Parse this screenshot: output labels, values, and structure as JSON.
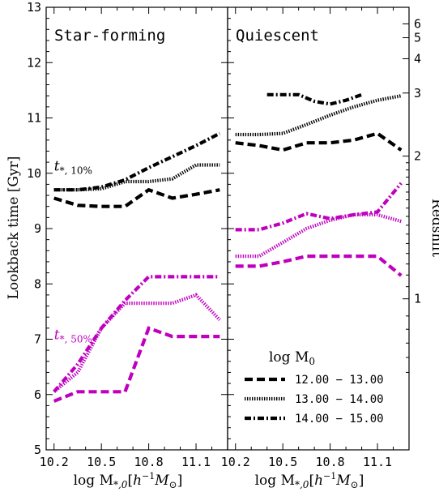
{
  "chart_data": {
    "type": "line",
    "ylabel": "Lookback time [Gyr]",
    "ylabel_right": "Redshift",
    "xlabel_left": "log M",
    "xlabel_right": "log M",
    "ylim": [
      5,
      13
    ],
    "xlim": [
      10.15,
      11.3
    ],
    "yticks": [
      "5",
      "6",
      "7",
      "8",
      "9",
      "10",
      "11",
      "12",
      "13"
    ],
    "yticks_values": [
      5,
      6,
      7,
      8,
      9,
      10,
      11,
      12,
      13
    ],
    "xticks": [
      "10.2",
      "10.5",
      "10.8",
      "11.1"
    ],
    "xticks_values": [
      10.2,
      10.5,
      10.8,
      11.1
    ],
    "redshift_ticks": [
      {
        "label": "1",
        "t": 7.73
      },
      {
        "label": "2",
        "t": 10.31
      },
      {
        "label": "3",
        "t": 11.45
      },
      {
        "label": "4",
        "t": 12.07
      },
      {
        "label": "5",
        "t": 12.45
      },
      {
        "label": "6",
        "t": 12.7
      }
    ],
    "redshift_minor_ticks": [
      6.4,
      6.67,
      6.93,
      7.18,
      7.42,
      7.95,
      8.16,
      8.36,
      8.55,
      8.73,
      8.9,
      9.06,
      9.22,
      9.37,
      9.52,
      9.66,
      9.8,
      9.93,
      10.06,
      10.19
    ],
    "legend": {
      "title": "log M",
      "entries": [
        "12.00 − 13.00",
        "13.00 − 14.00",
        "14.00 − 15.00"
      ]
    },
    "colors": {
      "t10": "#000000",
      "t50": "#bf00bf"
    },
    "panels": [
      {
        "title": "Star-forming",
        "annotations": [
          {
            "label": "t",
            "color": "#000000",
            "x": 10.2,
            "y": 10.05
          },
          {
            "label": "t",
            "color": "#bf00bf",
            "x": 10.2,
            "y": 7.0
          }
        ],
        "series": [
          {
            "group": "12.00 − 13.00",
            "metric": "t10",
            "x": [
              10.2,
              10.35,
              10.5,
              10.65,
              10.8,
              10.95,
              11.1,
              11.25
            ],
            "values": [
              9.55,
              9.42,
              9.4,
              9.4,
              9.7,
              9.55,
              9.62,
              9.7
            ]
          },
          {
            "group": "13.00 − 14.00",
            "metric": "t10",
            "x": [
              10.2,
              10.35,
              10.5,
              10.65,
              10.8,
              10.95,
              11.1,
              11.25
            ],
            "values": [
              9.7,
              9.7,
              9.72,
              9.85,
              9.85,
              9.9,
              10.15,
              10.15
            ]
          },
          {
            "group": "14.00 − 15.00",
            "metric": "t10",
            "x": [
              10.2,
              10.35,
              10.5,
              10.65,
              10.8,
              10.95,
              11.1,
              11.25
            ],
            "values": [
              9.7,
              9.7,
              9.75,
              9.88,
              10.1,
              10.3,
              10.5,
              10.72
            ]
          },
          {
            "group": "12.00 − 13.00",
            "metric": "t50",
            "x": [
              10.2,
              10.35,
              10.5,
              10.65,
              10.8,
              10.95,
              11.1,
              11.25
            ],
            "values": [
              5.88,
              6.05,
              6.05,
              6.05,
              7.2,
              7.05,
              7.05,
              7.05
            ]
          },
          {
            "group": "13.00 − 14.00",
            "metric": "t50",
            "x": [
              10.2,
              10.35,
              10.5,
              10.65,
              10.8,
              10.95,
              11.1,
              11.25
            ],
            "values": [
              6.05,
              6.4,
              7.2,
              7.65,
              7.65,
              7.65,
              7.8,
              7.35
            ]
          },
          {
            "group": "14.00 − 15.00",
            "metric": "t50",
            "x": [
              10.2,
              10.35,
              10.5,
              10.65,
              10.8,
              10.95,
              11.1,
              11.25
            ],
            "values": [
              6.05,
              6.55,
              7.2,
              7.7,
              8.13,
              8.13,
              8.13,
              8.13
            ]
          }
        ]
      },
      {
        "title": "Quiescent",
        "annotations": [],
        "series": [
          {
            "group": "12.00 − 13.00",
            "metric": "t10",
            "x": [
              10.2,
              10.35,
              10.5,
              10.65,
              10.8,
              10.95,
              11.1,
              11.25
            ],
            "values": [
              10.55,
              10.5,
              10.42,
              10.55,
              10.55,
              10.6,
              10.72,
              10.42
            ]
          },
          {
            "group": "13.00 − 14.00",
            "metric": "t10",
            "x": [
              10.2,
              10.35,
              10.5,
              10.65,
              10.8,
              10.95,
              11.1,
              11.25
            ],
            "values": [
              10.7,
              10.7,
              10.72,
              10.88,
              11.05,
              11.2,
              11.32,
              11.4
            ]
          },
          {
            "group": "14.00 − 15.00",
            "metric": "t10",
            "x": [
              10.4,
              10.5,
              10.6,
              10.7,
              10.8,
              10.9,
              11.0
            ],
            "values": [
              11.42,
              11.42,
              11.42,
              11.3,
              11.25,
              11.32,
              11.42
            ]
          },
          {
            "group": "12.00 − 13.00",
            "metric": "t50",
            "x": [
              10.2,
              10.35,
              10.5,
              10.65,
              10.8,
              10.95,
              11.1,
              11.25
            ],
            "values": [
              8.32,
              8.32,
              8.4,
              8.5,
              8.5,
              8.5,
              8.5,
              8.15
            ]
          },
          {
            "group": "13.00 − 14.00",
            "metric": "t50",
            "x": [
              10.2,
              10.35,
              10.5,
              10.65,
              10.8,
              10.95,
              11.1,
              11.25
            ],
            "values": [
              8.5,
              8.5,
              8.75,
              9.0,
              9.15,
              9.25,
              9.25,
              9.13
            ]
          },
          {
            "group": "14.00 − 15.00",
            "metric": "t50",
            "x": [
              10.2,
              10.35,
              10.5,
              10.65,
              10.8,
              10.95,
              11.1,
              11.25
            ],
            "values": [
              8.98,
              8.98,
              9.1,
              9.27,
              9.18,
              9.25,
              9.3,
              9.82
            ]
          }
        ]
      }
    ]
  }
}
